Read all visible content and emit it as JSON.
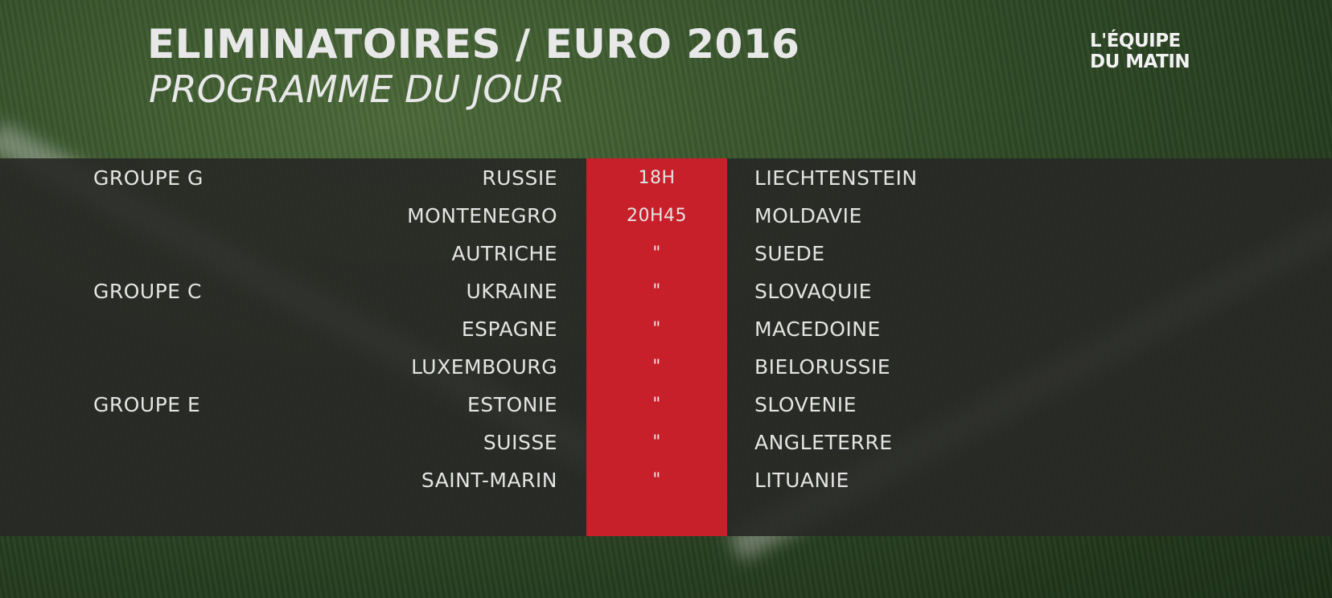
{
  "header": {
    "title": "ELIMINATOIRES / EURO 2016",
    "subtitle": "PROGRAMME DU JOUR"
  },
  "logo": {
    "line1": "L'ÉQUIPE",
    "line2": "DU MATIN"
  },
  "table": {
    "rows": [
      {
        "group": "GROUPE G",
        "home": "RUSSIE",
        "time": "18H",
        "away": "LIECHTENSTEIN"
      },
      {
        "home": "MONTENEGRO",
        "time": "20H45",
        "away": "MOLDAVIE"
      },
      {
        "home": "AUTRICHE",
        "time": "\"",
        "away": "SUEDE"
      },
      {
        "group": "GROUPE C",
        "home": "UKRAINE",
        "time": "\"",
        "away": "SLOVAQUIE"
      },
      {
        "home": "ESPAGNE",
        "time": "\"",
        "away": "MACEDOINE"
      },
      {
        "home": "LUXEMBOURG",
        "time": "\"",
        "away": "BIELORUSSIE"
      },
      {
        "group": "GROUPE E",
        "home": "ESTONIE",
        "time": "\"",
        "away": "SLOVENIE"
      },
      {
        "home": "SUISSE",
        "time": "\"",
        "away": "ANGLETERRE"
      },
      {
        "home": "SAINT-MARIN",
        "time": "\"",
        "away": "LITUANIE"
      }
    ]
  }
}
